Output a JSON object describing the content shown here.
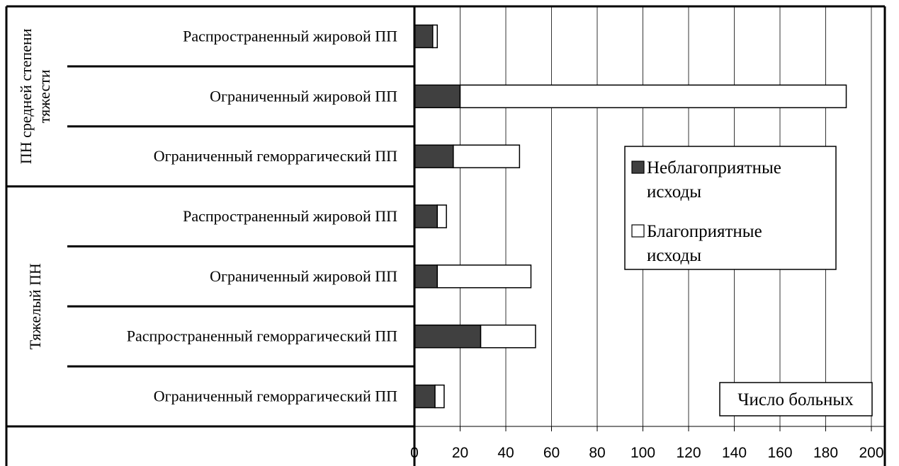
{
  "chart_data": {
    "type": "bar",
    "orientation": "horizontal",
    "stacked": true,
    "groups": [
      {
        "label": "ПН средней степени тяжести",
        "categories": [
          "Распространенный жировой ПП",
          "Ограниченный жировой ПП",
          "Ограниченный геморрагический ПП"
        ]
      },
      {
        "label": "Тяжелый ПН",
        "categories": [
          "Распространенный жировой ПП",
          "Ограниченный жировой ПП",
          "Распространенный геморрагический ПП",
          "Ограниченный геморрагический ПП"
        ]
      }
    ],
    "series": [
      {
        "name": "Неблагоприятные исходы",
        "color": "#404040",
        "values": [
          8,
          20,
          17,
          10,
          10,
          29,
          9
        ]
      },
      {
        "name": "Благоприятные исходы",
        "color": "#ffffff",
        "values": [
          2,
          169,
          29,
          4,
          41,
          24,
          4
        ]
      }
    ],
    "xlim": [
      0,
      200
    ],
    "xticks": [
      0,
      20,
      40,
      60,
      80,
      100,
      120,
      140,
      160,
      180,
      200
    ],
    "xlabel": "Число больных",
    "grid": "vertical",
    "legend_position": "right",
    "legend": {
      "unfavorable_line1": "Неблагоприятные",
      "unfavorable_line2": "исходы",
      "favorable_line1": "Благоприятные",
      "favorable_line2": "исходы"
    }
  }
}
